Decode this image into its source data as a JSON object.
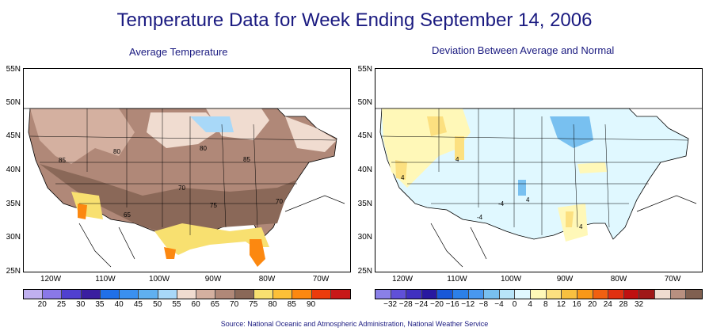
{
  "title": "Temperature Data for Week Ending September 14, 2006",
  "left_map": {
    "title": "Average Temperature",
    "contour_labels": [
      "80",
      "85",
      "80",
      "85",
      "70",
      "65",
      "75",
      "70"
    ],
    "legend_colors": [
      "#c0b0f0",
      "#8a78e8",
      "#5040d0",
      "#3a1ea0",
      "#2070e8",
      "#3a90f0",
      "#60b0f0",
      "#a8d8f8",
      "#f0dcd0",
      "#d4b0a0",
      "#b08878",
      "#8a6858",
      "#f8e070",
      "#fcc038",
      "#fc8810",
      "#ec3c0c",
      "#c81818"
    ],
    "legend_ticks": [
      "20",
      "25",
      "30",
      "35",
      "40",
      "45",
      "50",
      "55",
      "60",
      "65",
      "70",
      "75",
      "80",
      "85",
      "90"
    ]
  },
  "right_map": {
    "title": "Deviation Between Average and Normal",
    "contour_labels": [
      "4",
      "4",
      "4",
      "-4",
      "-4",
      "4"
    ],
    "legend_colors": [
      "#8a80e8",
      "#6050d8",
      "#4030c0",
      "#2818a0",
      "#1858d8",
      "#2c80e8",
      "#4898f0",
      "#78c0f0",
      "#b8e4f8",
      "#e0f8ff",
      "#fff8b8",
      "#fce080",
      "#f8c040",
      "#f89818",
      "#f06010",
      "#e03010",
      "#c01010",
      "#a01818",
      "#f0dcd0",
      "#b89080",
      "#806050"
    ],
    "legend_ticks": [
      "−32",
      "−28",
      "−24",
      "−20",
      "−16",
      "−12",
      "−8",
      "−4",
      "0",
      "4",
      "8",
      "12",
      "16",
      "20",
      "24",
      "28",
      "32"
    ]
  },
  "y_axis_labels": [
    "55N",
    "50N",
    "45N",
    "40N",
    "35N",
    "30N",
    "25N"
  ],
  "x_axis_labels": [
    "120W",
    "110W",
    "100W",
    "90W",
    "80W",
    "70W"
  ],
  "source": "Source:  National Oceanic and Atmospheric Administration, National Weather Service"
}
